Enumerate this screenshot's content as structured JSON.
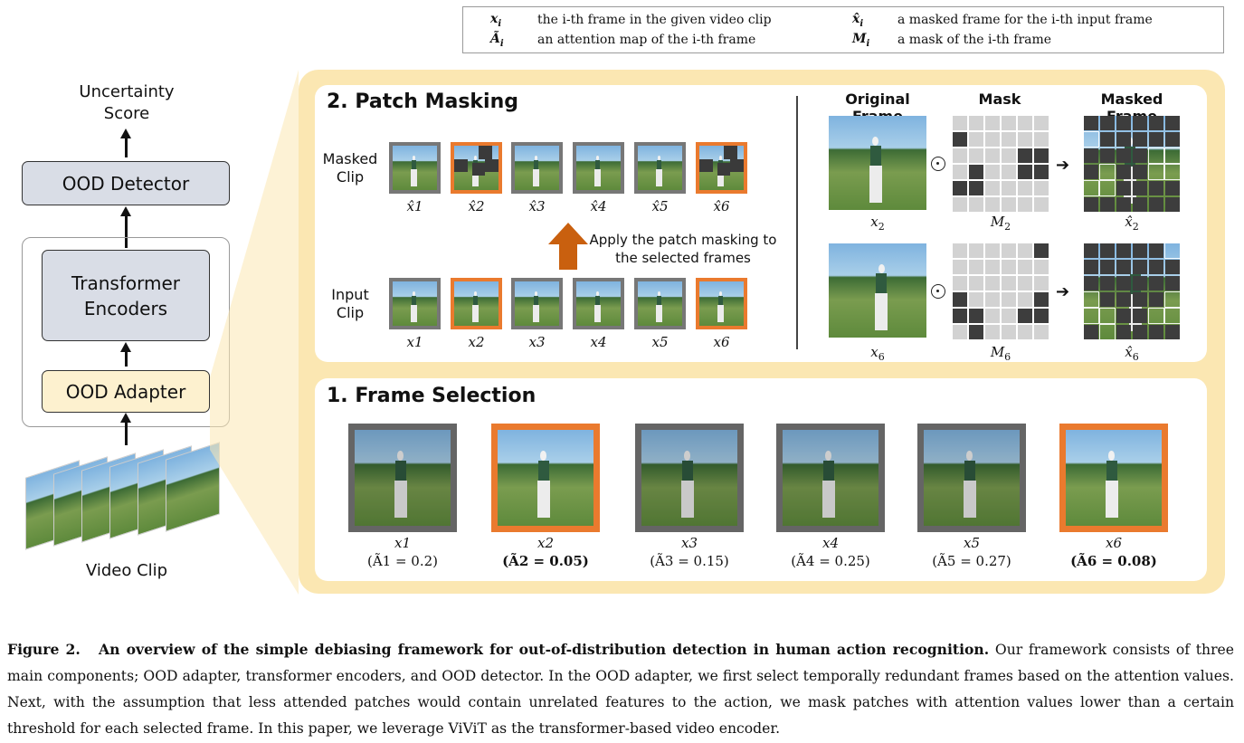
{
  "legend": {
    "row1": {
      "sym1": "x_i",
      "txt1": "the i-th frame in the given video clip",
      "sym2": "x̂_i",
      "txt2": "a masked frame for the i-th input frame"
    },
    "row2": {
      "sym1": "Ã_i",
      "txt1": "an attention map of the i-th frame",
      "sym2": "M_i",
      "txt2": "a mask of the i-th frame"
    }
  },
  "pipeline": {
    "output_label": "Uncertainty Score",
    "ood_detector": "OOD Detector",
    "transformer_encoders": "Transformer Encoders",
    "ood_adapter": "OOD Adapter",
    "video_clip": "Video Clip"
  },
  "patch_masking": {
    "title": "2. Patch Masking",
    "masked_clip_label": "Masked Clip",
    "input_clip_label": "Input Clip",
    "apply_text": "Apply the patch masking to the selected frames",
    "masked_labels": [
      "x̂1",
      "x̂2",
      "x̂3",
      "x̂4",
      "x̂5",
      "x̂6"
    ],
    "input_labels": [
      "x1",
      "x2",
      "x3",
      "x4",
      "x5",
      "x6"
    ],
    "selected_indices": [
      2,
      6
    ],
    "col_original": "Original Frame",
    "col_mask": "Mask",
    "col_masked": "Masked Frame",
    "row1": {
      "orig": "x2",
      "mask": "M2",
      "masked": "x̂2"
    },
    "row2": {
      "orig": "x6",
      "mask": "M6",
      "masked": "x̂6"
    }
  },
  "frame_selection": {
    "title": "1. Frame Selection",
    "frames": [
      {
        "label": "x1",
        "score": "(Ã1 = 0.2)",
        "selected": false
      },
      {
        "label": "x2",
        "score": "(Ã2 = 0.05)",
        "selected": true
      },
      {
        "label": "x3",
        "score": "(Ã3 = 0.15)",
        "selected": false
      },
      {
        "label": "x4",
        "score": "(Ã4 = 0.25)",
        "selected": false
      },
      {
        "label": "x5",
        "score": "(Ã5 = 0.27)",
        "selected": false
      },
      {
        "label": "x6",
        "score": "(Ã6 = 0.08)",
        "selected": true
      }
    ]
  },
  "caption": {
    "fig": "Figure 2.",
    "bold": "An overview of the simple debiasing framework for out-of-distribution detection in human action recognition.",
    "text": "Our framework consists of three main components; OOD adapter, transformer encoders, and OOD detector. In the OOD adapter, we first select temporally redundant frames based on the attention values. Next, with the assumption that less attended patches would contain unrelated features to the action, we mask patches with attention values lower than a certain threshold for each selected frame. In this paper, we leverage ViViT as the transformer-based video encoder."
  },
  "colors": {
    "panel": "#fbe7b2",
    "selected_border": "#ea7a2e",
    "arrow": "#c9600f",
    "box_grey": "#d9dde6",
    "box_yellow": "#fdf1cf"
  }
}
